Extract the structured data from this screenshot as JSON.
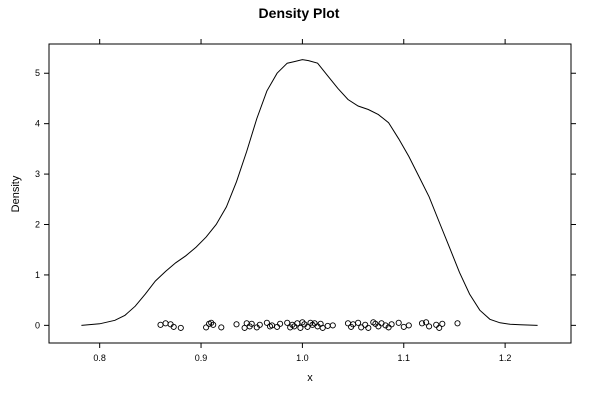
{
  "chart_data": {
    "type": "line",
    "title": "Density Plot",
    "xlabel": "x",
    "ylabel": "Density",
    "xlim": [
      0.75,
      1.265
    ],
    "ylim": [
      -0.35,
      5.58
    ],
    "x_ticks": [
      "0.8",
      "0.9",
      "1.0",
      "1.1",
      "1.2"
    ],
    "y_ticks": [
      "0",
      "1",
      "2",
      "3",
      "4",
      "5"
    ],
    "grid": false,
    "legend": "none",
    "series": [
      {
        "kind": "density-curve",
        "x": [
          0.782,
          0.8,
          0.815,
          0.825,
          0.835,
          0.845,
          0.855,
          0.865,
          0.875,
          0.885,
          0.895,
          0.905,
          0.915,
          0.925,
          0.935,
          0.945,
          0.955,
          0.965,
          0.975,
          0.985,
          0.992,
          1.0,
          1.006,
          1.015,
          1.025,
          1.035,
          1.045,
          1.055,
          1.065,
          1.075,
          1.085,
          1.095,
          1.105,
          1.115,
          1.125,
          1.135,
          1.145,
          1.155,
          1.165,
          1.175,
          1.185,
          1.195,
          1.205,
          1.215,
          1.232
        ],
        "y": [
          0.0,
          0.03,
          0.1,
          0.2,
          0.38,
          0.62,
          0.88,
          1.07,
          1.24,
          1.38,
          1.55,
          1.75,
          2.0,
          2.35,
          2.85,
          3.45,
          4.1,
          4.65,
          5.0,
          5.2,
          5.23,
          5.27,
          5.25,
          5.2,
          4.95,
          4.7,
          4.48,
          4.35,
          4.28,
          4.18,
          4.02,
          3.7,
          3.35,
          2.95,
          2.55,
          2.05,
          1.55,
          1.05,
          0.62,
          0.3,
          0.12,
          0.05,
          0.02,
          0.01,
          0.0
        ],
        "color": "#000000"
      },
      {
        "kind": "jittered-points",
        "marker": "open-circle",
        "color": "#000000",
        "x": [
          0.86,
          0.865,
          0.87,
          0.873,
          0.88,
          0.905,
          0.908,
          0.91,
          0.912,
          0.92,
          0.935,
          0.943,
          0.945,
          0.948,
          0.95,
          0.955,
          0.958,
          0.965,
          0.968,
          0.97,
          0.975,
          0.978,
          0.985,
          0.988,
          0.99,
          0.992,
          0.995,
          0.998,
          1.0,
          1.002,
          1.005,
          1.008,
          1.01,
          1.012,
          1.015,
          1.018,
          1.02,
          1.025,
          1.03,
          1.045,
          1.048,
          1.05,
          1.055,
          1.058,
          1.062,
          1.065,
          1.07,
          1.072,
          1.075,
          1.078,
          1.082,
          1.085,
          1.088,
          1.095,
          1.1,
          1.105,
          1.118,
          1.122,
          1.125,
          1.132,
          1.135,
          1.138,
          1.153
        ],
        "y": [
          0.01,
          0.04,
          0.02,
          -0.03,
          -0.05,
          -0.04,
          0.03,
          0.05,
          0.01,
          -0.04,
          0.02,
          -0.05,
          0.04,
          -0.02,
          0.03,
          -0.04,
          0.01,
          0.05,
          -0.02,
          0.0,
          -0.03,
          0.03,
          0.05,
          -0.04,
          0.01,
          -0.02,
          0.04,
          -0.05,
          0.06,
          0.02,
          -0.03,
          0.05,
          0.01,
          0.04,
          -0.02,
          0.03,
          -0.05,
          -0.01,
          0.0,
          0.04,
          -0.03,
          0.02,
          0.05,
          -0.04,
          0.01,
          -0.05,
          0.06,
          0.03,
          -0.02,
          0.04,
          0.0,
          -0.04,
          0.02,
          0.05,
          -0.03,
          0.0,
          0.04,
          0.06,
          -0.02,
          0.01,
          -0.05,
          0.03,
          0.04
        ]
      }
    ]
  }
}
